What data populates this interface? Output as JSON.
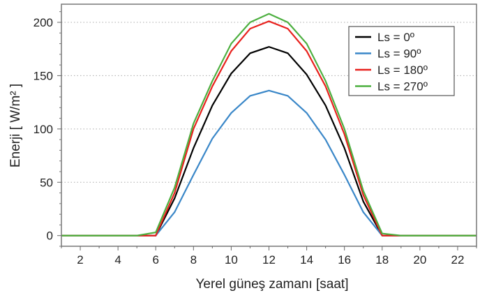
{
  "chart_data": {
    "type": "line",
    "title": "",
    "xlabel": "Yerel güneş zamanı [saat]",
    "ylabel": "Enerji [ W/m² ]",
    "xlim": [
      1,
      23
    ],
    "ylim": [
      -10,
      217
    ],
    "xticks": [
      2,
      4,
      6,
      8,
      10,
      12,
      14,
      16,
      18,
      20,
      22
    ],
    "yticks": [
      0,
      50,
      100,
      150,
      200
    ],
    "grid": "horizontal dotted",
    "legend_position": "top-right",
    "x": [
      1,
      2,
      3,
      4,
      5,
      6,
      7,
      8,
      9,
      10,
      11,
      12,
      13,
      14,
      15,
      16,
      17,
      18,
      19,
      20,
      21,
      22,
      23
    ],
    "series": [
      {
        "name": "Ls = 0º",
        "color": "#000000",
        "values": [
          0,
          0,
          0,
          0,
          0,
          0,
          35,
          82,
          122,
          152,
          171,
          177,
          171,
          151,
          122,
          82,
          32,
          0,
          0,
          0,
          0,
          0,
          0
        ]
      },
      {
        "name": "Ls = 90º",
        "color": "#3a87c8",
        "values": [
          0,
          0,
          0,
          0,
          0,
          0,
          22,
          57,
          91,
          115,
          131,
          136,
          131,
          115,
          90,
          57,
          22,
          0,
          0,
          0,
          0,
          0,
          0
        ]
      },
      {
        "name": "Ls = 180º",
        "color": "#e8211d",
        "values": [
          0,
          0,
          0,
          0,
          0,
          0,
          40,
          100,
          140,
          173,
          194,
          201,
          194,
          173,
          140,
          95,
          38,
          0,
          0,
          0,
          0,
          0,
          0
        ]
      },
      {
        "name": "Ls = 270º",
        "color": "#4caf3f",
        "values": [
          0,
          0,
          0,
          0,
          0,
          3,
          45,
          105,
          145,
          180,
          200,
          208,
          200,
          180,
          145,
          100,
          42,
          2,
          0,
          0,
          0,
          0,
          0
        ]
      }
    ]
  }
}
